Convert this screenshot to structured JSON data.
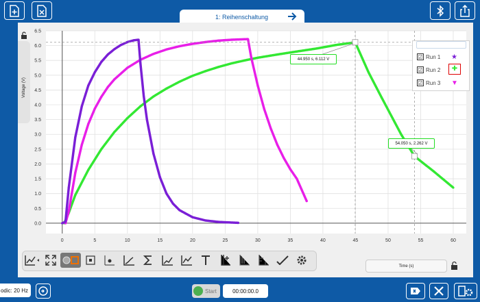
{
  "header": {
    "tab_title": "1: Reihenschaltung"
  },
  "icons": {
    "new_file": "file-plus-icon",
    "close_file": "file-x-icon",
    "next": "arrow-right-icon",
    "bluetooth": "bluetooth-icon",
    "share": "share-icon",
    "lock": "lock-icon",
    "tools": "tools-icon",
    "settings": "settings-icon",
    "timer": "timer-icon"
  },
  "colors": {
    "run1": "#7a1fd6",
    "run2": "#33e833",
    "run3": "#e81fe8",
    "accent": "#0e5aa6"
  },
  "legend": {
    "items": [
      {
        "label": "Run 1",
        "checked": "☑",
        "marker": "★"
      },
      {
        "label": "Run 2",
        "checked": "☑",
        "marker": "✚"
      },
      {
        "label": "Run 3",
        "checked": "☑",
        "marker": "▼"
      }
    ]
  },
  "callouts": [
    {
      "text": "44.950 s, 6.112 V"
    },
    {
      "text": "54.050 s, 2.262 V"
    }
  ],
  "graph_toolbar": {
    "tools": [
      "auto-scale-icon",
      "pan-icon",
      "zoom-box-icon",
      "fit-icon",
      "tangent-icon",
      "sigma-icon",
      "curve-fit-icon",
      "integral-icon",
      "text-icon",
      "add-axis-icon",
      "statistics-icon",
      "draw-icon",
      "graph-settings-icon"
    ]
  },
  "x_axis_button": {
    "label": "Time (s)"
  },
  "bottom": {
    "rate": "odic: 20 Hz",
    "start_label": "Start",
    "clock": "00:00:00.0"
  },
  "chart_data": {
    "type": "line",
    "xlabel": "Time (s)",
    "ylabel": "Voltage (V)",
    "xlim": [
      -2.5,
      62
    ],
    "ylim": [
      -0.35,
      6.5
    ],
    "xticks": [
      0,
      5,
      10,
      15,
      20,
      25,
      30,
      35,
      40,
      45,
      50,
      55,
      60
    ],
    "yticks": [
      0.0,
      0.5,
      1.0,
      1.5,
      2.0,
      2.5,
      3.0,
      3.5,
      4.0,
      4.5,
      5.0,
      5.5,
      6.0,
      6.5
    ],
    "grid": true,
    "legend_position": "top-right",
    "series": [
      {
        "name": "Run 1",
        "x": [
          0.0,
          0.5,
          1,
          2,
          3,
          4,
          5,
          6,
          7,
          8,
          9,
          10,
          11,
          11.7,
          12,
          12.5,
          13,
          14,
          15,
          16,
          17,
          18,
          20,
          22,
          24,
          27
        ],
        "y": [
          0.0,
          0.05,
          1.2,
          2.9,
          3.95,
          4.65,
          5.1,
          5.45,
          5.7,
          5.88,
          6.02,
          6.12,
          6.18,
          6.2,
          5.4,
          4.3,
          3.5,
          2.35,
          1.55,
          1.0,
          0.66,
          0.44,
          0.2,
          0.09,
          0.04,
          0.01
        ]
      },
      {
        "name": "Run 2",
        "x": [
          0.3,
          1,
          2,
          4,
          6,
          8,
          10,
          12,
          14,
          16,
          18,
          20,
          22,
          24,
          26,
          28,
          30,
          33,
          36,
          39,
          42,
          44.95,
          47,
          49,
          52,
          54.05,
          57,
          60
        ],
        "y": [
          0.0,
          0.35,
          0.95,
          1.8,
          2.5,
          3.08,
          3.55,
          3.95,
          4.28,
          4.55,
          4.78,
          4.98,
          5.14,
          5.28,
          5.4,
          5.5,
          5.59,
          5.7,
          5.8,
          5.9,
          6.02,
          6.112,
          5.1,
          4.25,
          3.0,
          2.262,
          1.75,
          1.2
        ]
      },
      {
        "name": "Run 3",
        "x": [
          0.5,
          1,
          2,
          3,
          4,
          5,
          6,
          7,
          8,
          10,
          12,
          14,
          16,
          18,
          20,
          22,
          24,
          26,
          28.5,
          29,
          30,
          31,
          32,
          33,
          34,
          35,
          36,
          37.5
        ],
        "y": [
          0.0,
          0.4,
          1.7,
          2.65,
          3.35,
          3.87,
          4.27,
          4.6,
          4.86,
          5.25,
          5.52,
          5.72,
          5.87,
          5.98,
          6.06,
          6.12,
          6.17,
          6.2,
          6.22,
          5.6,
          4.65,
          3.85,
          3.2,
          2.65,
          2.2,
          1.82,
          1.5,
          0.75
        ]
      }
    ],
    "markers": [
      {
        "x": 44.95,
        "y": 6.112
      },
      {
        "x": 54.05,
        "y": 2.262
      }
    ]
  }
}
